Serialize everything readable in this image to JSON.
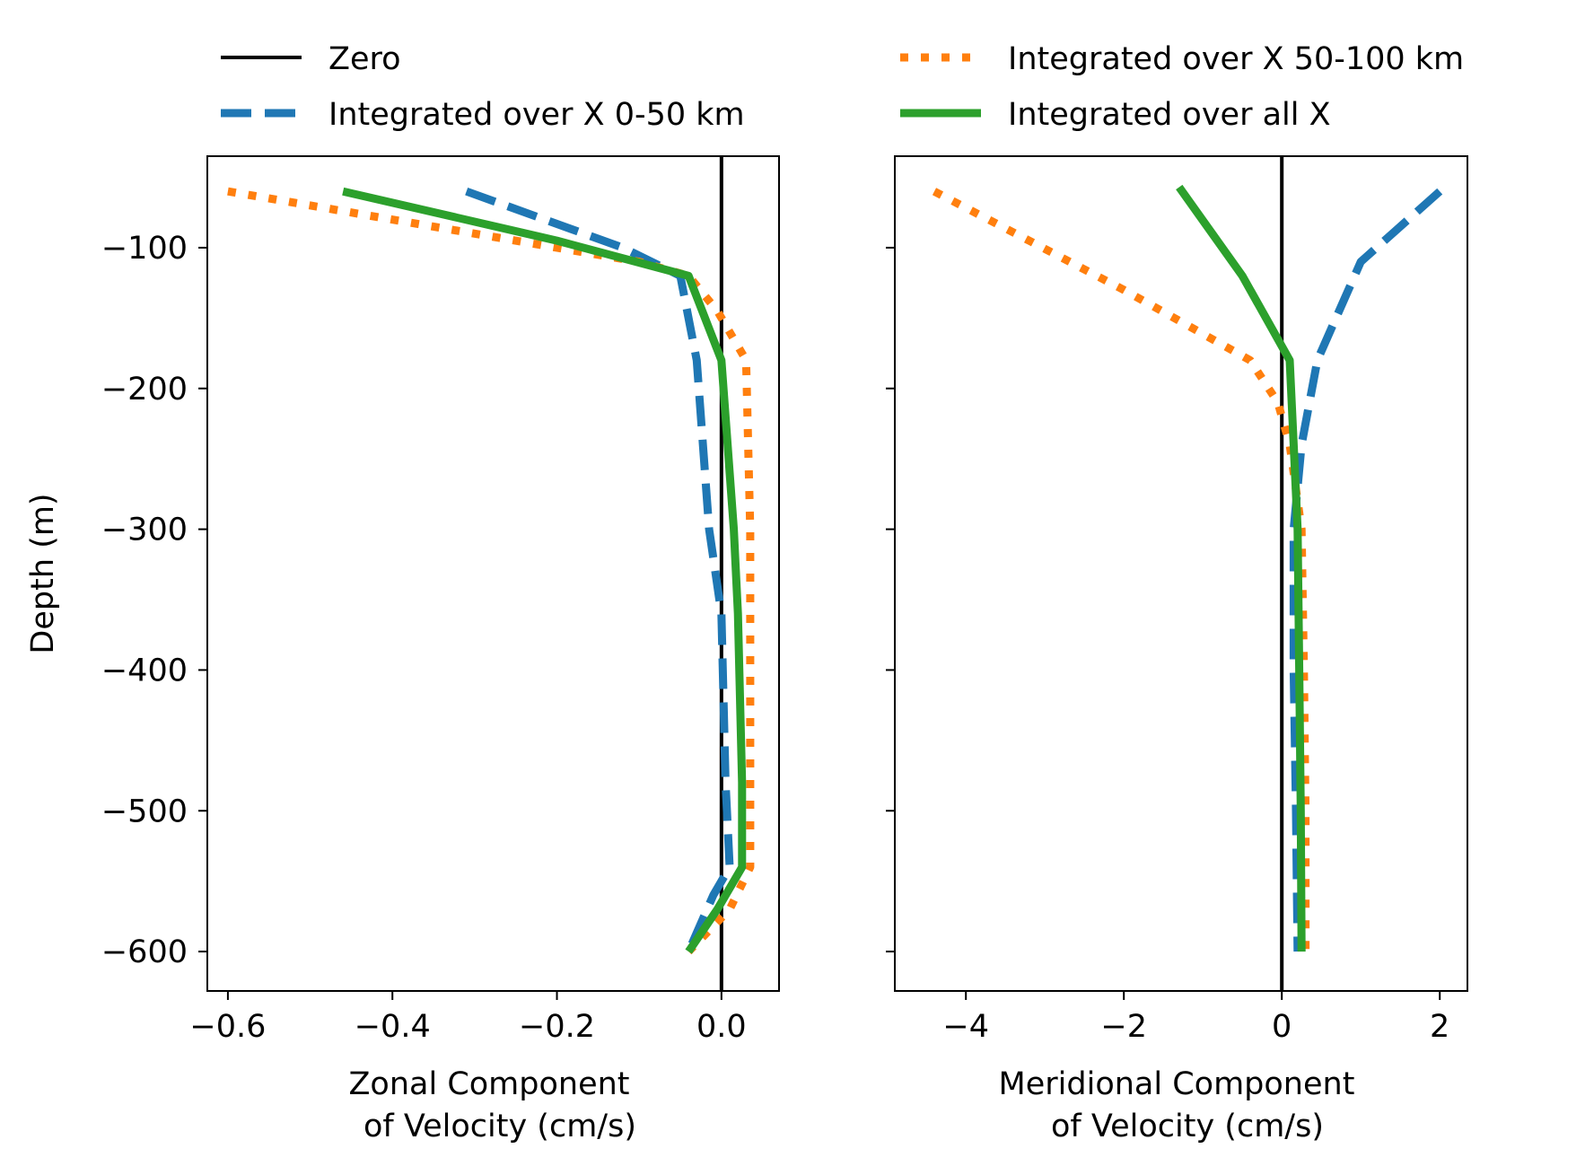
{
  "legend": {
    "entries": [
      {
        "label": "Zero",
        "color": "#000000",
        "style": "solid"
      },
      {
        "label": "Integrated over X 0-50 km",
        "color": "#1f77b4",
        "style": "dashed"
      },
      {
        "label": "Integrated over X 50-100 km",
        "color": "#ff7f0e",
        "style": "dotted"
      },
      {
        "label": "Integrated over all X",
        "color": "#2ca02c",
        "style": "solid-thick"
      }
    ],
    "placement": "top, above plots, two columns"
  },
  "chart_data": [
    {
      "type": "line",
      "xlabel": [
        "Zonal Component",
        "of Velocity (cm/s)"
      ],
      "ylabel": "Depth (m)",
      "xlim": [
        -0.625,
        0.07
      ],
      "ylim": [
        -628,
        -35
      ],
      "xticks": [
        -0.6,
        -0.4,
        -0.2,
        0.0
      ],
      "xtick_labels": [
        "−0.6",
        "−0.4",
        "−0.2",
        "0.0"
      ],
      "yticks": [
        -100,
        -200,
        -300,
        -400,
        -500,
        -600
      ],
      "ytick_labels": [
        "−100",
        "−200",
        "−300",
        "−400",
        "−500",
        "−600"
      ],
      "grid": false,
      "zero_line": 0,
      "series": [
        {
          "name": "Integrated over X 0-50 km",
          "color": "#1f77b4",
          "style": "dashed",
          "points": [
            [
              -0.31,
              -60
            ],
            [
              -0.12,
              -100
            ],
            [
              -0.05,
              -120
            ],
            [
              -0.03,
              -180
            ],
            [
              -0.015,
              -300
            ],
            [
              0.0,
              -360
            ],
            [
              0.005,
              -480
            ],
            [
              0.01,
              -540
            ],
            [
              -0.01,
              -560
            ],
            [
              -0.04,
              -600
            ]
          ]
        },
        {
          "name": "Integrated over X 50-100 km",
          "color": "#ff7f0e",
          "style": "dotted",
          "points": [
            [
              -0.6,
              -60
            ],
            [
              -0.3,
              -90
            ],
            [
              -0.1,
              -110
            ],
            [
              -0.04,
              -120
            ],
            [
              -0.005,
              -145
            ],
            [
              0.03,
              -180
            ],
            [
              0.035,
              -300
            ],
            [
              0.035,
              -420
            ],
            [
              0.035,
              -540
            ],
            [
              0.01,
              -570
            ],
            [
              -0.04,
              -600
            ]
          ]
        },
        {
          "name": "Integrated over all X",
          "color": "#2ca02c",
          "style": "solid-thick",
          "points": [
            [
              -0.46,
              -60
            ],
            [
              -0.2,
              -95
            ],
            [
              -0.04,
              -120
            ],
            [
              0.0,
              -180
            ],
            [
              0.015,
              -300
            ],
            [
              0.02,
              -360
            ],
            [
              0.025,
              -480
            ],
            [
              0.025,
              -540
            ],
            [
              -0.005,
              -570
            ],
            [
              -0.04,
              -600
            ]
          ]
        }
      ]
    },
    {
      "type": "line",
      "xlabel": [
        "Meridional Component",
        "of Velocity (cm/s)"
      ],
      "ylabel": "",
      "xlim": [
        -4.9,
        2.35
      ],
      "ylim": [
        -628,
        -35
      ],
      "xticks": [
        -4,
        -2,
        0,
        2
      ],
      "xtick_labels": [
        "−4",
        "−2",
        "0",
        "2"
      ],
      "yticks": [
        -100,
        -200,
        -300,
        -400,
        -500,
        -600
      ],
      "ytick_labels": [],
      "grid": false,
      "zero_line": 0,
      "series": [
        {
          "name": "Integrated over X 0-50 km",
          "color": "#1f77b4",
          "style": "dashed",
          "points": [
            [
              2.0,
              -60
            ],
            [
              1.0,
              -110
            ],
            [
              0.45,
              -180
            ],
            [
              0.25,
              -240
            ],
            [
              0.15,
              -300
            ],
            [
              0.15,
              -400
            ],
            [
              0.18,
              -500
            ],
            [
              0.2,
              -600
            ]
          ]
        },
        {
          "name": "Integrated over X 50-100 km",
          "color": "#ff7f0e",
          "style": "dotted",
          "points": [
            [
              -4.4,
              -60
            ],
            [
              -2.0,
              -130
            ],
            [
              -0.4,
              -180
            ],
            [
              -0.05,
              -210
            ],
            [
              0.1,
              -240
            ],
            [
              0.25,
              -300
            ],
            [
              0.28,
              -400
            ],
            [
              0.3,
              -500
            ],
            [
              0.3,
              -600
            ]
          ]
        },
        {
          "name": "Integrated over all X",
          "color": "#2ca02c",
          "style": "solid-thick",
          "points": [
            [
              -1.3,
              -57
            ],
            [
              -0.5,
              -120
            ],
            [
              0.1,
              -180
            ],
            [
              0.2,
              -300
            ],
            [
              0.22,
              -400
            ],
            [
              0.24,
              -500
            ],
            [
              0.25,
              -600
            ]
          ]
        }
      ]
    }
  ]
}
